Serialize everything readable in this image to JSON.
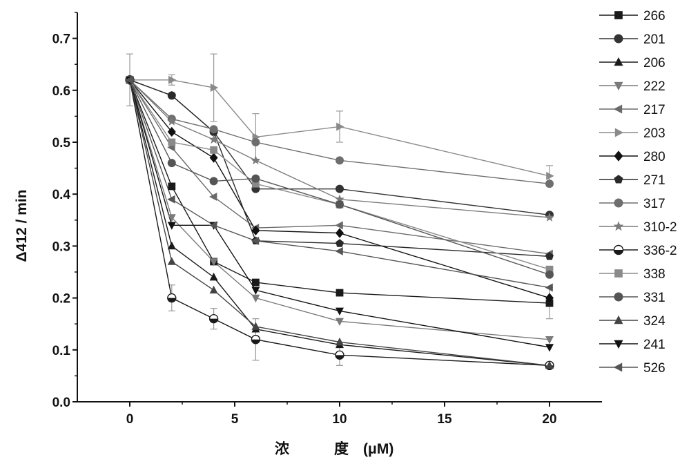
{
  "chart_data": {
    "type": "line",
    "xlabel_parts": [
      "浓",
      "度",
      "(μM)"
    ],
    "ylabel": "Δ412 / min",
    "xlim": [
      -2.5,
      22.5
    ],
    "ylim": [
      0.0,
      0.75
    ],
    "xticks": [
      0,
      5,
      10,
      15,
      20
    ],
    "xtick_labels": [
      "0",
      "5",
      "10",
      "15",
      "20"
    ],
    "yticks": [
      0.0,
      0.1,
      0.2,
      0.3,
      0.4,
      0.5,
      0.6,
      0.7
    ],
    "ytick_labels": [
      "0.0",
      "0.1",
      "0.2",
      "0.3",
      "0.4",
      "0.5",
      "0.6",
      "0.7"
    ],
    "x": [
      0,
      2,
      4,
      6,
      10,
      20
    ],
    "legend_position": "right",
    "series": [
      {
        "name": "266",
        "marker": "square",
        "color": "#1a1a1a",
        "values": [
          0.62,
          0.415,
          0.27,
          0.23,
          0.21,
          0.19
        ],
        "errors": [
          0,
          0,
          0,
          0,
          0,
          0.03
        ]
      },
      {
        "name": "201",
        "marker": "circle",
        "color": "#333333",
        "values": [
          0.62,
          0.59,
          0.52,
          0.41,
          0.41,
          0.36
        ],
        "errors": [
          0,
          0,
          0,
          0,
          0,
          0
        ]
      },
      {
        "name": "206",
        "marker": "triangle-up",
        "color": "#1a1a1a",
        "values": [
          0.62,
          0.3,
          0.24,
          0.14,
          0.11,
          0.07
        ],
        "errors": [
          0,
          0,
          0,
          0,
          0,
          0
        ]
      },
      {
        "name": "222",
        "marker": "triangle-down",
        "color": "#7a7a7a",
        "values": [
          0.62,
          0.355,
          0.27,
          0.2,
          0.155,
          0.12
        ],
        "errors": [
          0,
          0,
          0,
          0,
          0,
          0
        ]
      },
      {
        "name": "217",
        "marker": "triangle-left",
        "color": "#6a6a6a",
        "values": [
          0.62,
          0.49,
          0.395,
          0.335,
          0.34,
          0.285
        ],
        "errors": [
          0,
          0,
          0,
          0,
          0,
          0
        ]
      },
      {
        "name": "203",
        "marker": "triangle-right",
        "color": "#8a8a8a",
        "values": [
          0.62,
          0.62,
          0.605,
          0.51,
          0.53,
          0.435
        ],
        "errors": [
          0.05,
          0.01,
          0.065,
          0.045,
          0.03,
          0.02
        ]
      },
      {
        "name": "280",
        "marker": "diamond",
        "color": "#111111",
        "values": [
          0.62,
          0.52,
          0.47,
          0.33,
          0.325,
          0.2
        ],
        "errors": [
          0,
          0,
          0,
          0,
          0,
          0
        ]
      },
      {
        "name": "271",
        "marker": "pentagon",
        "color": "#2a2a2a",
        "values": [
          0.62,
          0.59,
          0.52,
          0.31,
          0.305,
          0.28
        ],
        "errors": [
          0,
          0,
          0,
          0,
          0,
          0
        ]
      },
      {
        "name": "317",
        "marker": "circle",
        "color": "#6e6e6e",
        "values": [
          0.62,
          0.545,
          0.525,
          0.5,
          0.465,
          0.42
        ],
        "errors": [
          0,
          0,
          0,
          0,
          0,
          0
        ]
      },
      {
        "name": "310-2",
        "marker": "star",
        "color": "#7a7a7a",
        "values": [
          0.62,
          0.54,
          0.505,
          0.465,
          0.39,
          0.355
        ],
        "errors": [
          0,
          0,
          0,
          0,
          0,
          0
        ]
      },
      {
        "name": "336-2",
        "marker": "half-circle",
        "color": "#1a1a1a",
        "values": [
          0.62,
          0.2,
          0.16,
          0.12,
          0.09,
          0.07
        ],
        "errors": [
          0,
          0.025,
          0.02,
          0.04,
          0.02,
          0
        ]
      },
      {
        "name": "338",
        "marker": "square",
        "color": "#8a8a8a",
        "values": [
          0.62,
          0.5,
          0.485,
          0.42,
          0.38,
          0.255
        ],
        "errors": [
          0,
          0,
          0,
          0,
          0,
          0
        ]
      },
      {
        "name": "331",
        "marker": "circle",
        "color": "#555555",
        "values": [
          0.62,
          0.46,
          0.425,
          0.43,
          0.38,
          0.245
        ],
        "errors": [
          0,
          0,
          0,
          0,
          0,
          0
        ]
      },
      {
        "name": "324",
        "marker": "triangle-up",
        "color": "#444444",
        "values": [
          0.62,
          0.27,
          0.215,
          0.145,
          0.115,
          0.07
        ],
        "errors": [
          0,
          0,
          0,
          0,
          0,
          0
        ]
      },
      {
        "name": "241",
        "marker": "triangle-down",
        "color": "#111111",
        "values": [
          0.62,
          0.34,
          0.34,
          0.215,
          0.175,
          0.105
        ],
        "errors": [
          0,
          0,
          0,
          0,
          0,
          0
        ]
      },
      {
        "name": "526",
        "marker": "triangle-left",
        "color": "#555555",
        "values": [
          0.62,
          0.39,
          0.34,
          0.31,
          0.29,
          0.22
        ],
        "errors": [
          0,
          0,
          0,
          0,
          0,
          0
        ]
      }
    ]
  }
}
